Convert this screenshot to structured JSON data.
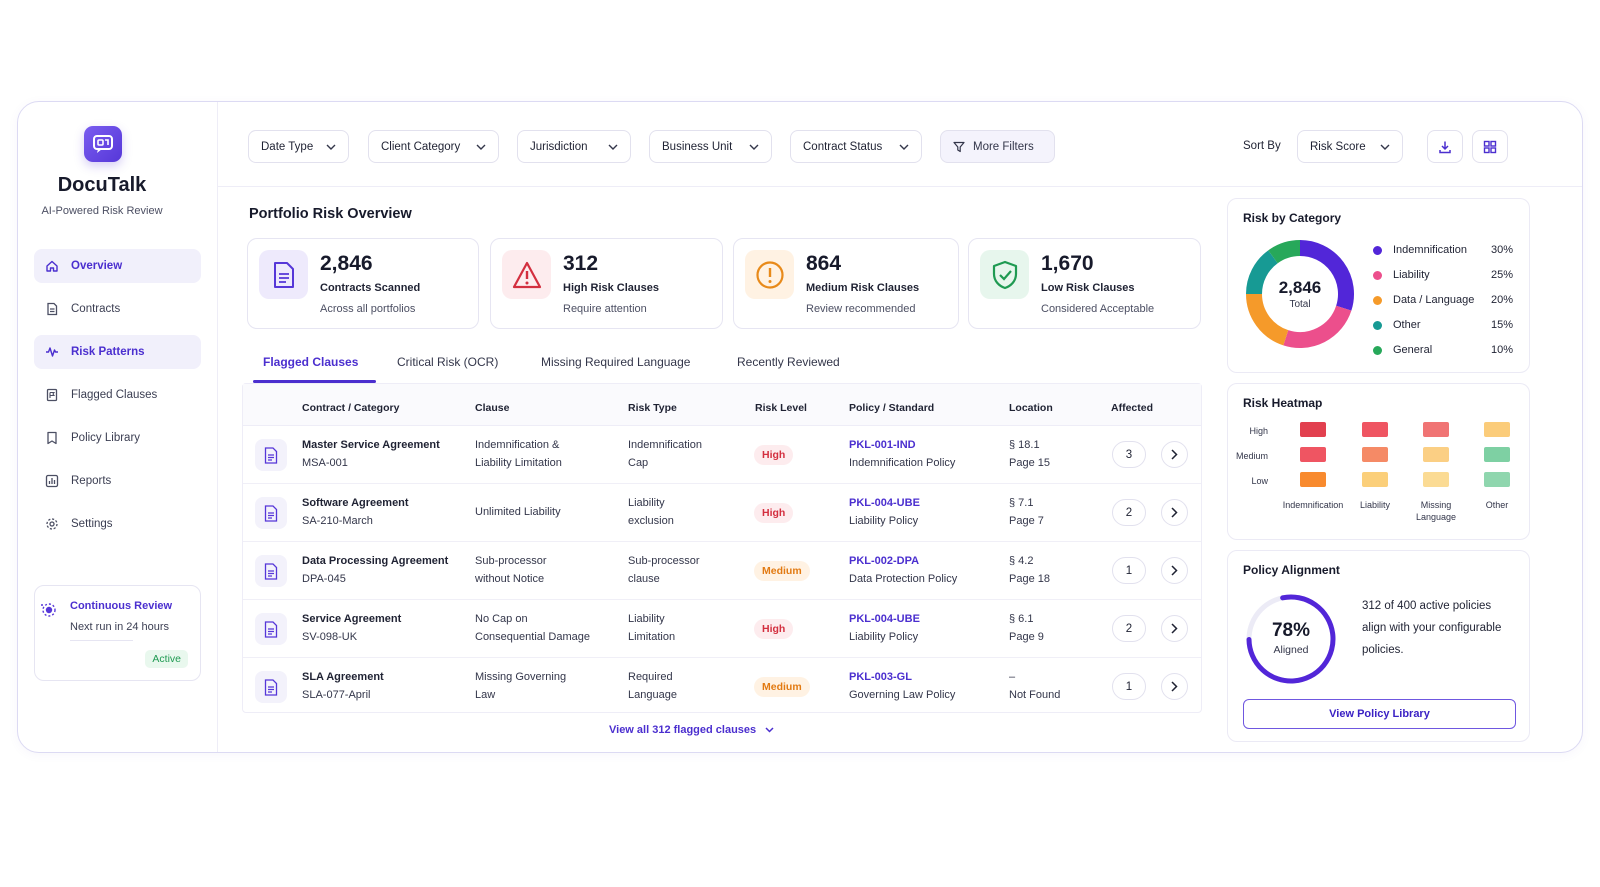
{
  "brand": {
    "name": "DocuTalk",
    "tagline": "AI-Powered Risk Review"
  },
  "sidebar": {
    "items": [
      {
        "label": "Overview",
        "icon": "home-icon",
        "active": true
      },
      {
        "label": "Contracts",
        "icon": "document-icon",
        "active": false
      },
      {
        "label": "Risk Patterns",
        "icon": "pulse-icon",
        "active": true
      },
      {
        "label": "Flagged Clauses",
        "icon": "flag-doc-icon",
        "active": false
      },
      {
        "label": "Policy Library",
        "icon": "bookmark-icon",
        "active": false
      },
      {
        "label": "Reports",
        "icon": "chart-icon",
        "active": false
      },
      {
        "label": "Settings",
        "icon": "gear-icon",
        "active": false
      }
    ],
    "review": {
      "title": "Continuous Review",
      "subtitle": "Next run in 24 hours",
      "badge": "Active"
    }
  },
  "filters": {
    "items": [
      "Date Type",
      "Client Category",
      "Jurisdiction",
      "Business Unit",
      "Contract Status"
    ],
    "more": "More Filters",
    "sort_label": "Sort By",
    "sort_value": "Risk Score"
  },
  "overview": {
    "title": "Portfolio Risk Overview",
    "stats": [
      {
        "value": "2,846",
        "label": "Contracts Scanned",
        "sub": "Across all portfolios",
        "color": "#5637d8"
      },
      {
        "value": "312",
        "label": "High Risk Clauses",
        "sub": "Require attention",
        "color": "#d32f3f"
      },
      {
        "value": "864",
        "label": "Medium Risk Clauses",
        "sub": "Review recommended",
        "color": "#e88a1a"
      },
      {
        "value": "1,670",
        "label": "Low Risk Clauses",
        "sub": "Considered Acceptable",
        "color": "#1f9a52"
      }
    ]
  },
  "tabs": [
    "Flagged Clauses",
    "Critical Risk (OCR)",
    "Missing Required Language",
    "Recently Reviewed"
  ],
  "table": {
    "headers": [
      "Contract / Category",
      "Clause",
      "Risk Type",
      "Risk Level",
      "Policy / Standard",
      "Location",
      "Affected"
    ],
    "rows": [
      {
        "contract": "Master Service Agreement",
        "code": "MSA-001",
        "clause1": "Indemnification &",
        "clause2": "Liability Limitation",
        "type1": "Indemnification",
        "type2": "Cap",
        "level": "High",
        "policy_code": "PKL-001-IND",
        "policy_name": "Indemnification Policy",
        "loc1": "§ 18.1",
        "loc2": "Page 15",
        "affected": "3"
      },
      {
        "contract": "Software Agreement",
        "code": "SA-210-March",
        "clause1": "Unlimited Liability",
        "clause2": "",
        "type1": "Liability",
        "type2": "exclusion",
        "level": "High",
        "policy_code": "PKL-004-UBE",
        "policy_name": "Liability Policy",
        "loc1": "§ 7.1",
        "loc2": "Page 7",
        "affected": "2"
      },
      {
        "contract": "Data Processing Agreement",
        "code": "DPA-045",
        "clause1": "Sub-processor",
        "clause2": "without Notice",
        "type1": "Sub-processor",
        "type2": "clause",
        "level": "Medium",
        "policy_code": "PKL-002-DPA",
        "policy_name": "Data Protection Policy",
        "loc1": "§ 4.2",
        "loc2": "Page 18",
        "affected": "1"
      },
      {
        "contract": "Service Agreement",
        "code": "SV-098-UK",
        "clause1": "No Cap on",
        "clause2": "Consequential Damage",
        "type1": "Liability",
        "type2": "Limitation",
        "level": "High",
        "policy_code": "PKL-004-UBE",
        "policy_name": "Liability Policy",
        "loc1": "§ 6.1",
        "loc2": "Page 9",
        "affected": "2"
      },
      {
        "contract": "SLA Agreement",
        "code": "SLA-077-April",
        "clause1": "Missing Governing",
        "clause2": "Law",
        "type1": "Required",
        "type2": "Language",
        "level": "Medium",
        "policy_code": "PKL-003-GL",
        "policy_name": "Governing Law Policy",
        "loc1": "–",
        "loc2": "Not Found",
        "affected": "1"
      }
    ],
    "view_all": "View all 312 flagged clauses"
  },
  "risk_by_category": {
    "title": "Risk by Category",
    "total_value": "2,846",
    "total_label": "Total",
    "items": [
      {
        "label": "Indemnification",
        "pct": "30%",
        "value": 30,
        "color": "#5226d8"
      },
      {
        "label": "Liability",
        "pct": "25%",
        "value": 25,
        "color": "#ec4f8c"
      },
      {
        "label": "Data / Language",
        "pct": "20%",
        "value": 20,
        "color": "#f59a2a"
      },
      {
        "label": "Other",
        "pct": "15%",
        "value": 15,
        "color": "#179a94"
      },
      {
        "label": "General",
        "pct": "10%",
        "value": 10,
        "color": "#27a85a"
      }
    ]
  },
  "heatmap": {
    "title": "Risk Heatmap",
    "rows": [
      "High",
      "Medium",
      "Low"
    ],
    "cols": [
      {
        "label1": "Indemnification",
        "label2": ""
      },
      {
        "label1": "Liability",
        "label2": ""
      },
      {
        "label1": "Missing",
        "label2": "Language"
      },
      {
        "label1": "Other",
        "label2": ""
      }
    ],
    "colors": [
      [
        "#e2404f",
        "#ef5562",
        "#f07474",
        "#fbcc7a"
      ],
      [
        "#ef5562",
        "#f58a66",
        "#fbcf84",
        "#7ed0a3"
      ],
      [
        "#f88a2e",
        "#fbcf7a",
        "#fbdb94",
        "#8fd6ae"
      ]
    ]
  },
  "policy_alignment": {
    "title": "Policy Alignment",
    "pct": "78%",
    "value": 78,
    "label": "Aligned",
    "text": "312 of 400 active policies align with your configurable policies.",
    "button": "View Policy Library"
  }
}
